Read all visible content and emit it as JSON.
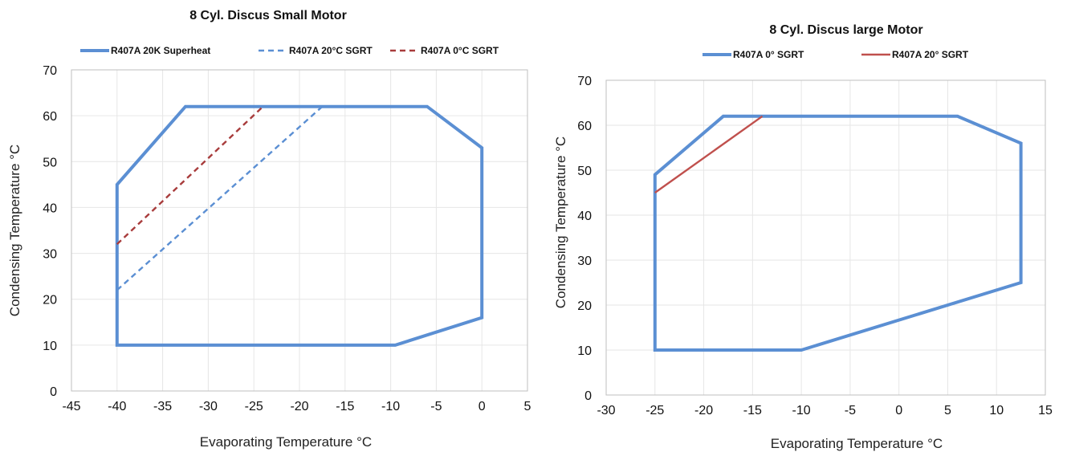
{
  "chart_data": [
    {
      "type": "line",
      "title": "8 Cyl. Discus Small Motor",
      "xlabel": "Evaporating Temperature °C",
      "ylabel": "Condensing Temperature °C",
      "xlim": [
        -45,
        5
      ],
      "ylim": [
        0,
        70
      ],
      "xticks": [
        -45,
        -40,
        -35,
        -30,
        -25,
        -20,
        -15,
        -10,
        -5,
        0,
        5
      ],
      "yticks": [
        0,
        10,
        20,
        30,
        40,
        50,
        60,
        70
      ],
      "grid": true,
      "legend": "top",
      "series": [
        {
          "name": "R407A 20K Superheat",
          "color": "#5b8fd3",
          "style": "solid",
          "closed": true,
          "points": [
            [
              -40,
              10
            ],
            [
              -9.5,
              10
            ],
            [
              0,
              16
            ],
            [
              0,
              53
            ],
            [
              -6,
              62
            ],
            [
              -32.5,
              62
            ],
            [
              -40,
              45
            ]
          ]
        },
        {
          "name": "R407A 20°C SGRT",
          "color": "#5b8fd3",
          "style": "dashed",
          "points": [
            [
              -40,
              22
            ],
            [
              -17.5,
              62
            ]
          ]
        },
        {
          "name": "R407A 0°C SGRT",
          "color": "#a83c3c",
          "style": "dashed",
          "points": [
            [
              -40,
              32
            ],
            [
              -24,
              62
            ]
          ]
        }
      ]
    },
    {
      "type": "line",
      "title": "8 Cyl. Discus large Motor",
      "xlabel": "Evaporating Temperature °C",
      "ylabel": "Condensing Temperature °C",
      "xlim": [
        -30,
        15
      ],
      "ylim": [
        0,
        70
      ],
      "xticks": [
        -30,
        -25,
        -20,
        -15,
        -10,
        -5,
        0,
        5,
        10,
        15
      ],
      "yticks": [
        0,
        10,
        20,
        30,
        40,
        50,
        60,
        70
      ],
      "grid": true,
      "legend": "top",
      "series": [
        {
          "name": "R407A 0° SGRT",
          "color": "#5b8fd3",
          "style": "solid",
          "closed": true,
          "points": [
            [
              -25,
              10
            ],
            [
              -10,
              10
            ],
            [
              12.5,
              25
            ],
            [
              12.5,
              56
            ],
            [
              6,
              62
            ],
            [
              -18,
              62
            ],
            [
              -25,
              49
            ]
          ]
        },
        {
          "name": "R407A 20° SGRT",
          "color": "#c0504d",
          "style": "solid",
          "points": [
            [
              -25,
              45
            ],
            [
              -14,
              62
            ]
          ]
        }
      ]
    }
  ]
}
